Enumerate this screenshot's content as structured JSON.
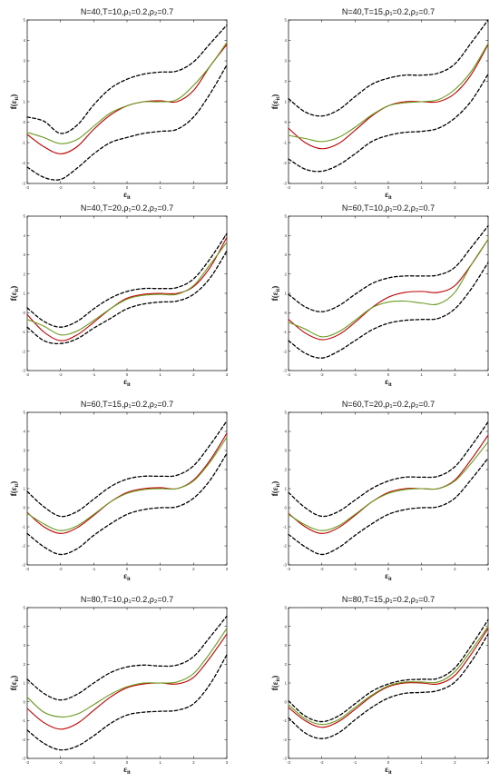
{
  "chart_data": [
    {
      "type": "line",
      "title": "N=40,T=10,ρ₁=0.2,ρ₂=0.7",
      "xlabel": "ε_it",
      "ylabel": "f(ε_it)",
      "xlim": [
        -3,
        3
      ],
      "ylim": [
        -3,
        5
      ],
      "xticks": [
        -3,
        -2,
        -1,
        0,
        1,
        2,
        3
      ],
      "yticks": [
        -3,
        -2,
        -1,
        0,
        1,
        2,
        3,
        4,
        5
      ],
      "grid": false,
      "x": [
        -3,
        -2.5,
        -2,
        -1.5,
        -1,
        -0.5,
        0,
        0.5,
        1,
        1.5,
        2,
        2.5,
        3
      ],
      "series": [
        {
          "style": "dashed",
          "color": "#000000",
          "values": [
            0.25,
            0.05,
            -0.55,
            -0.15,
            0.85,
            1.65,
            2.1,
            2.35,
            2.45,
            2.5,
            2.95,
            3.85,
            4.75
          ]
        },
        {
          "style": "solid",
          "color": "#c00000",
          "values": [
            -0.6,
            -1.2,
            -1.55,
            -1.2,
            -0.35,
            0.35,
            0.8,
            1.0,
            1.05,
            1.0,
            1.55,
            2.75,
            3.8
          ]
        },
        {
          "style": "solid",
          "color": "#6a9a1f",
          "values": [
            -0.5,
            -0.75,
            -1.05,
            -0.85,
            -0.2,
            0.45,
            0.8,
            1.0,
            1.0,
            1.1,
            1.8,
            2.75,
            3.9
          ]
        },
        {
          "style": "dashed",
          "color": "#000000",
          "values": [
            -2.2,
            -2.7,
            -2.8,
            -2.25,
            -1.55,
            -1.0,
            -0.75,
            -0.55,
            -0.45,
            -0.35,
            0.25,
            1.4,
            2.8
          ]
        }
      ]
    },
    {
      "type": "line",
      "title": "N=40,T=15,ρ₁=0.2,ρ₂=0.7",
      "xlabel": "ε_it",
      "ylabel": "f(ε_it)",
      "xlim": [
        -3,
        3
      ],
      "ylim": [
        -3,
        5
      ],
      "xticks": [
        -3,
        -2,
        -1,
        0,
        1,
        2,
        3
      ],
      "yticks": [
        -3,
        -2,
        -1,
        0,
        1,
        2,
        3,
        4,
        5
      ],
      "grid": false,
      "x": [
        -3,
        -2.5,
        -2,
        -1.5,
        -1,
        -0.5,
        0,
        0.5,
        1,
        1.5,
        2,
        2.5,
        3
      ],
      "series": [
        {
          "style": "dashed",
          "color": "#000000",
          "values": [
            1.15,
            0.5,
            0.3,
            0.6,
            1.25,
            1.85,
            2.15,
            2.3,
            2.3,
            2.4,
            2.85,
            3.9,
            5.0
          ]
        },
        {
          "style": "solid",
          "color": "#c00000",
          "values": [
            -0.3,
            -1.0,
            -1.3,
            -1.05,
            -0.4,
            0.3,
            0.8,
            1.0,
            1.0,
            1.0,
            1.4,
            2.35,
            3.8
          ]
        },
        {
          "style": "solid",
          "color": "#6a9a1f",
          "values": [
            -0.65,
            -0.8,
            -0.95,
            -0.75,
            -0.25,
            0.35,
            0.8,
            0.95,
            1.0,
            1.1,
            1.6,
            2.5,
            3.85
          ]
        },
        {
          "style": "dashed",
          "color": "#000000",
          "values": [
            -1.8,
            -2.3,
            -2.4,
            -2.1,
            -1.55,
            -0.95,
            -0.65,
            -0.5,
            -0.45,
            -0.3,
            0.2,
            1.05,
            2.35
          ]
        }
      ]
    },
    {
      "type": "line",
      "title": "N=40,T=20,ρ₁=0.2,ρ₂=0.7",
      "xlabel": "ε_it",
      "ylabel": "f(ε_it)",
      "xlim": [
        -3,
        3
      ],
      "ylim": [
        -3,
        5
      ],
      "xticks": [
        -3,
        -2,
        -1,
        0,
        1,
        2,
        3
      ],
      "yticks": [
        -3,
        -2,
        -1,
        0,
        1,
        2,
        3,
        4,
        5
      ],
      "grid": false,
      "x": [
        -3,
        -2.5,
        -2,
        -1.5,
        -1,
        -0.5,
        0,
        0.5,
        1,
        1.5,
        2,
        2.5,
        3
      ],
      "series": [
        {
          "style": "dashed",
          "color": "#000000",
          "values": [
            0.25,
            -0.45,
            -0.75,
            -0.45,
            0.2,
            0.75,
            1.1,
            1.25,
            1.25,
            1.3,
            1.75,
            2.8,
            4.1
          ]
        },
        {
          "style": "solid",
          "color": "#c00000",
          "values": [
            -0.1,
            -1.0,
            -1.45,
            -1.15,
            -0.5,
            0.2,
            0.75,
            0.95,
            1.0,
            1.0,
            1.35,
            2.35,
            3.9
          ]
        },
        {
          "style": "solid",
          "color": "#6a9a1f",
          "values": [
            -0.35,
            -0.7,
            -1.15,
            -0.95,
            -0.4,
            0.2,
            0.7,
            0.9,
            0.95,
            0.95,
            1.4,
            2.5,
            3.65
          ]
        },
        {
          "style": "dashed",
          "color": "#000000",
          "values": [
            -0.75,
            -1.45,
            -1.6,
            -1.35,
            -0.8,
            -0.3,
            0.2,
            0.45,
            0.55,
            0.6,
            0.95,
            1.8,
            3.2
          ]
        }
      ]
    },
    {
      "type": "line",
      "title": "N=60,T=10,ρ₁=0.2,ρ₂=0.7",
      "xlabel": "ε_it",
      "ylabel": "f(ε_it)",
      "xlim": [
        -3,
        3
      ],
      "ylim": [
        -3,
        5
      ],
      "xticks": [
        -3,
        -2,
        -1,
        0,
        1,
        2,
        3
      ],
      "yticks": [
        -3,
        -2,
        -1,
        0,
        1,
        2,
        3,
        4,
        5
      ],
      "grid": false,
      "x": [
        -3,
        -2.5,
        -2,
        -1.5,
        -1,
        -0.5,
        0,
        0.5,
        1,
        1.5,
        2,
        2.5,
        3
      ],
      "series": [
        {
          "style": "dashed",
          "color": "#000000",
          "values": [
            0.95,
            0.3,
            0.05,
            0.35,
            0.95,
            1.5,
            1.8,
            1.9,
            1.9,
            1.95,
            2.35,
            3.4,
            4.5
          ]
        },
        {
          "style": "solid",
          "color": "#c00000",
          "values": [
            -0.35,
            -1.05,
            -1.4,
            -1.15,
            -0.5,
            0.25,
            0.8,
            1.05,
            1.1,
            1.05,
            1.4,
            2.5,
            3.8
          ]
        },
        {
          "style": "solid",
          "color": "#6a9a1f",
          "values": [
            -0.5,
            -0.85,
            -1.25,
            -1.0,
            -0.4,
            0.25,
            0.55,
            0.6,
            0.5,
            0.45,
            1.05,
            2.5,
            3.8
          ]
        },
        {
          "style": "dashed",
          "color": "#000000",
          "values": [
            -1.45,
            -2.1,
            -2.35,
            -2.0,
            -1.45,
            -0.9,
            -0.55,
            -0.4,
            -0.35,
            -0.3,
            0.2,
            1.25,
            2.6
          ]
        }
      ]
    },
    {
      "type": "line",
      "title": "N=60,T=15,ρ₁=0.2,ρ₂=0.7",
      "xlabel": "ε_it",
      "ylabel": "f(ε_it)",
      "xlim": [
        -3,
        3
      ],
      "ylim": [
        -3,
        5
      ],
      "xticks": [
        -3,
        -2,
        -1,
        0,
        1,
        2,
        3
      ],
      "yticks": [
        -3,
        -2,
        -1,
        0,
        1,
        2,
        3,
        4,
        5
      ],
      "grid": false,
      "x": [
        -3,
        -2.5,
        -2,
        -1.5,
        -1,
        -0.5,
        0,
        0.5,
        1,
        1.5,
        2,
        2.5,
        3
      ],
      "series": [
        {
          "style": "dashed",
          "color": "#000000",
          "values": [
            0.85,
            0.05,
            -0.45,
            -0.2,
            0.45,
            1.1,
            1.5,
            1.65,
            1.65,
            1.7,
            2.2,
            3.3,
            4.55
          ]
        },
        {
          "style": "solid",
          "color": "#c00000",
          "values": [
            -0.25,
            -1.0,
            -1.35,
            -1.05,
            -0.4,
            0.3,
            0.8,
            1.0,
            1.05,
            1.0,
            1.45,
            2.5,
            3.9
          ]
        },
        {
          "style": "solid",
          "color": "#6a9a1f",
          "values": [
            -0.3,
            -0.85,
            -1.2,
            -0.95,
            -0.35,
            0.3,
            0.75,
            0.95,
            1.0,
            1.0,
            1.4,
            2.4,
            3.7
          ]
        },
        {
          "style": "dashed",
          "color": "#000000",
          "values": [
            -1.35,
            -2.05,
            -2.45,
            -2.15,
            -1.45,
            -0.85,
            -0.35,
            -0.1,
            0.0,
            0.05,
            0.5,
            1.45,
            2.85
          ]
        }
      ]
    },
    {
      "type": "line",
      "title": "N=60,T=20,ρ₁=0.2,ρ₂=0.7",
      "xlabel": "ε_it",
      "ylabel": "f(ε_it)",
      "xlim": [
        -3,
        3
      ],
      "ylim": [
        -3,
        5
      ],
      "xticks": [
        -3,
        -2,
        -1,
        0,
        1,
        2,
        3
      ],
      "yticks": [
        -3,
        -2,
        -1,
        0,
        1,
        2,
        3,
        4,
        5
      ],
      "grid": false,
      "x": [
        -3,
        -2.5,
        -2,
        -1.5,
        -1,
        -0.5,
        0,
        0.5,
        1,
        1.5,
        2,
        2.5,
        3
      ],
      "series": [
        {
          "style": "dashed",
          "color": "#000000",
          "values": [
            0.8,
            0.0,
            -0.45,
            -0.2,
            0.4,
            1.0,
            1.4,
            1.6,
            1.6,
            1.65,
            2.15,
            3.25,
            4.5
          ]
        },
        {
          "style": "solid",
          "color": "#c00000",
          "values": [
            -0.3,
            -1.0,
            -1.35,
            -1.05,
            -0.4,
            0.3,
            0.8,
            1.0,
            1.0,
            1.0,
            1.45,
            2.55,
            3.8
          ]
        },
        {
          "style": "solid",
          "color": "#6a9a1f",
          "values": [
            -0.35,
            -0.9,
            -1.2,
            -0.95,
            -0.35,
            0.3,
            0.75,
            0.95,
            1.0,
            1.0,
            1.4,
            2.35,
            3.45
          ]
        },
        {
          "style": "dashed",
          "color": "#000000",
          "values": [
            -1.4,
            -2.05,
            -2.45,
            -2.1,
            -1.45,
            -0.85,
            -0.35,
            -0.1,
            0.0,
            0.05,
            0.5,
            1.5,
            2.6
          ]
        }
      ]
    },
    {
      "type": "line",
      "title": "N=80,T=10,ρ₁=0.2,ρ₂=0.7",
      "xlabel": "ε_it",
      "ylabel": "f(ε_it)",
      "xlim": [
        -3,
        3
      ],
      "ylim": [
        -3,
        5
      ],
      "xticks": [
        -3,
        -2,
        -1,
        0,
        1,
        2,
        3
      ],
      "yticks": [
        -3,
        -2,
        -1,
        0,
        1,
        2,
        3,
        4,
        5
      ],
      "grid": false,
      "x": [
        -3,
        -2.5,
        -2,
        -1.5,
        -1,
        -0.5,
        0,
        0.5,
        1,
        1.5,
        2,
        2.5,
        3
      ],
      "series": [
        {
          "style": "dashed",
          "color": "#000000",
          "values": [
            1.2,
            0.45,
            0.1,
            0.4,
            1.0,
            1.55,
            1.85,
            1.95,
            1.9,
            1.95,
            2.4,
            3.45,
            4.55
          ]
        },
        {
          "style": "solid",
          "color": "#c00000",
          "values": [
            -0.35,
            -1.1,
            -1.45,
            -1.15,
            -0.45,
            0.25,
            0.75,
            0.95,
            1.0,
            0.95,
            1.3,
            2.35,
            3.6
          ]
        },
        {
          "style": "solid",
          "color": "#6a9a1f",
          "values": [
            0.25,
            -0.55,
            -0.8,
            -0.65,
            -0.15,
            0.4,
            0.8,
            1.0,
            1.0,
            1.05,
            1.5,
            2.6,
            3.9
          ]
        },
        {
          "style": "dashed",
          "color": "#000000",
          "values": [
            -1.5,
            -2.2,
            -2.55,
            -2.35,
            -1.8,
            -1.15,
            -0.7,
            -0.55,
            -0.5,
            -0.45,
            -0.1,
            0.95,
            2.5
          ]
        }
      ]
    },
    {
      "type": "line",
      "title": "N=80,T=15,ρ₁=0.2,ρ₂=0.7",
      "xlabel": "ε_it",
      "ylabel": "f(ε_it)",
      "xlim": [
        -3,
        3
      ],
      "ylim": [
        -3,
        5
      ],
      "xticks": [
        -3,
        -2,
        -1,
        0,
        1,
        2,
        3
      ],
      "yticks": [
        -3,
        -2,
        -1,
        0,
        1,
        2,
        3,
        4,
        5
      ],
      "grid": false,
      "x": [
        -3,
        -2.5,
        -2,
        -1.5,
        -1,
        -0.5,
        0,
        0.5,
        1,
        1.5,
        2,
        2.5,
        3
      ],
      "series": [
        {
          "style": "dashed",
          "color": "#000000",
          "values": [
            0.05,
            -0.75,
            -1.05,
            -0.75,
            -0.1,
            0.55,
            0.95,
            1.15,
            1.2,
            1.25,
            1.8,
            3.0,
            4.35
          ]
        },
        {
          "style": "solid",
          "color": "#c00000",
          "values": [
            -0.3,
            -1.0,
            -1.35,
            -1.05,
            -0.4,
            0.3,
            0.8,
            1.0,
            1.0,
            0.95,
            1.4,
            2.55,
            3.9
          ]
        },
        {
          "style": "solid",
          "color": "#6a9a1f",
          "values": [
            -0.15,
            -0.9,
            -1.2,
            -0.95,
            -0.3,
            0.35,
            0.85,
            1.05,
            1.05,
            1.05,
            1.6,
            2.75,
            4.0
          ]
        },
        {
          "style": "dashed",
          "color": "#000000",
          "values": [
            -0.85,
            -1.65,
            -1.95,
            -1.65,
            -0.95,
            -0.3,
            0.2,
            0.45,
            0.5,
            0.6,
            1.05,
            2.15,
            3.6
          ]
        }
      ]
    }
  ]
}
